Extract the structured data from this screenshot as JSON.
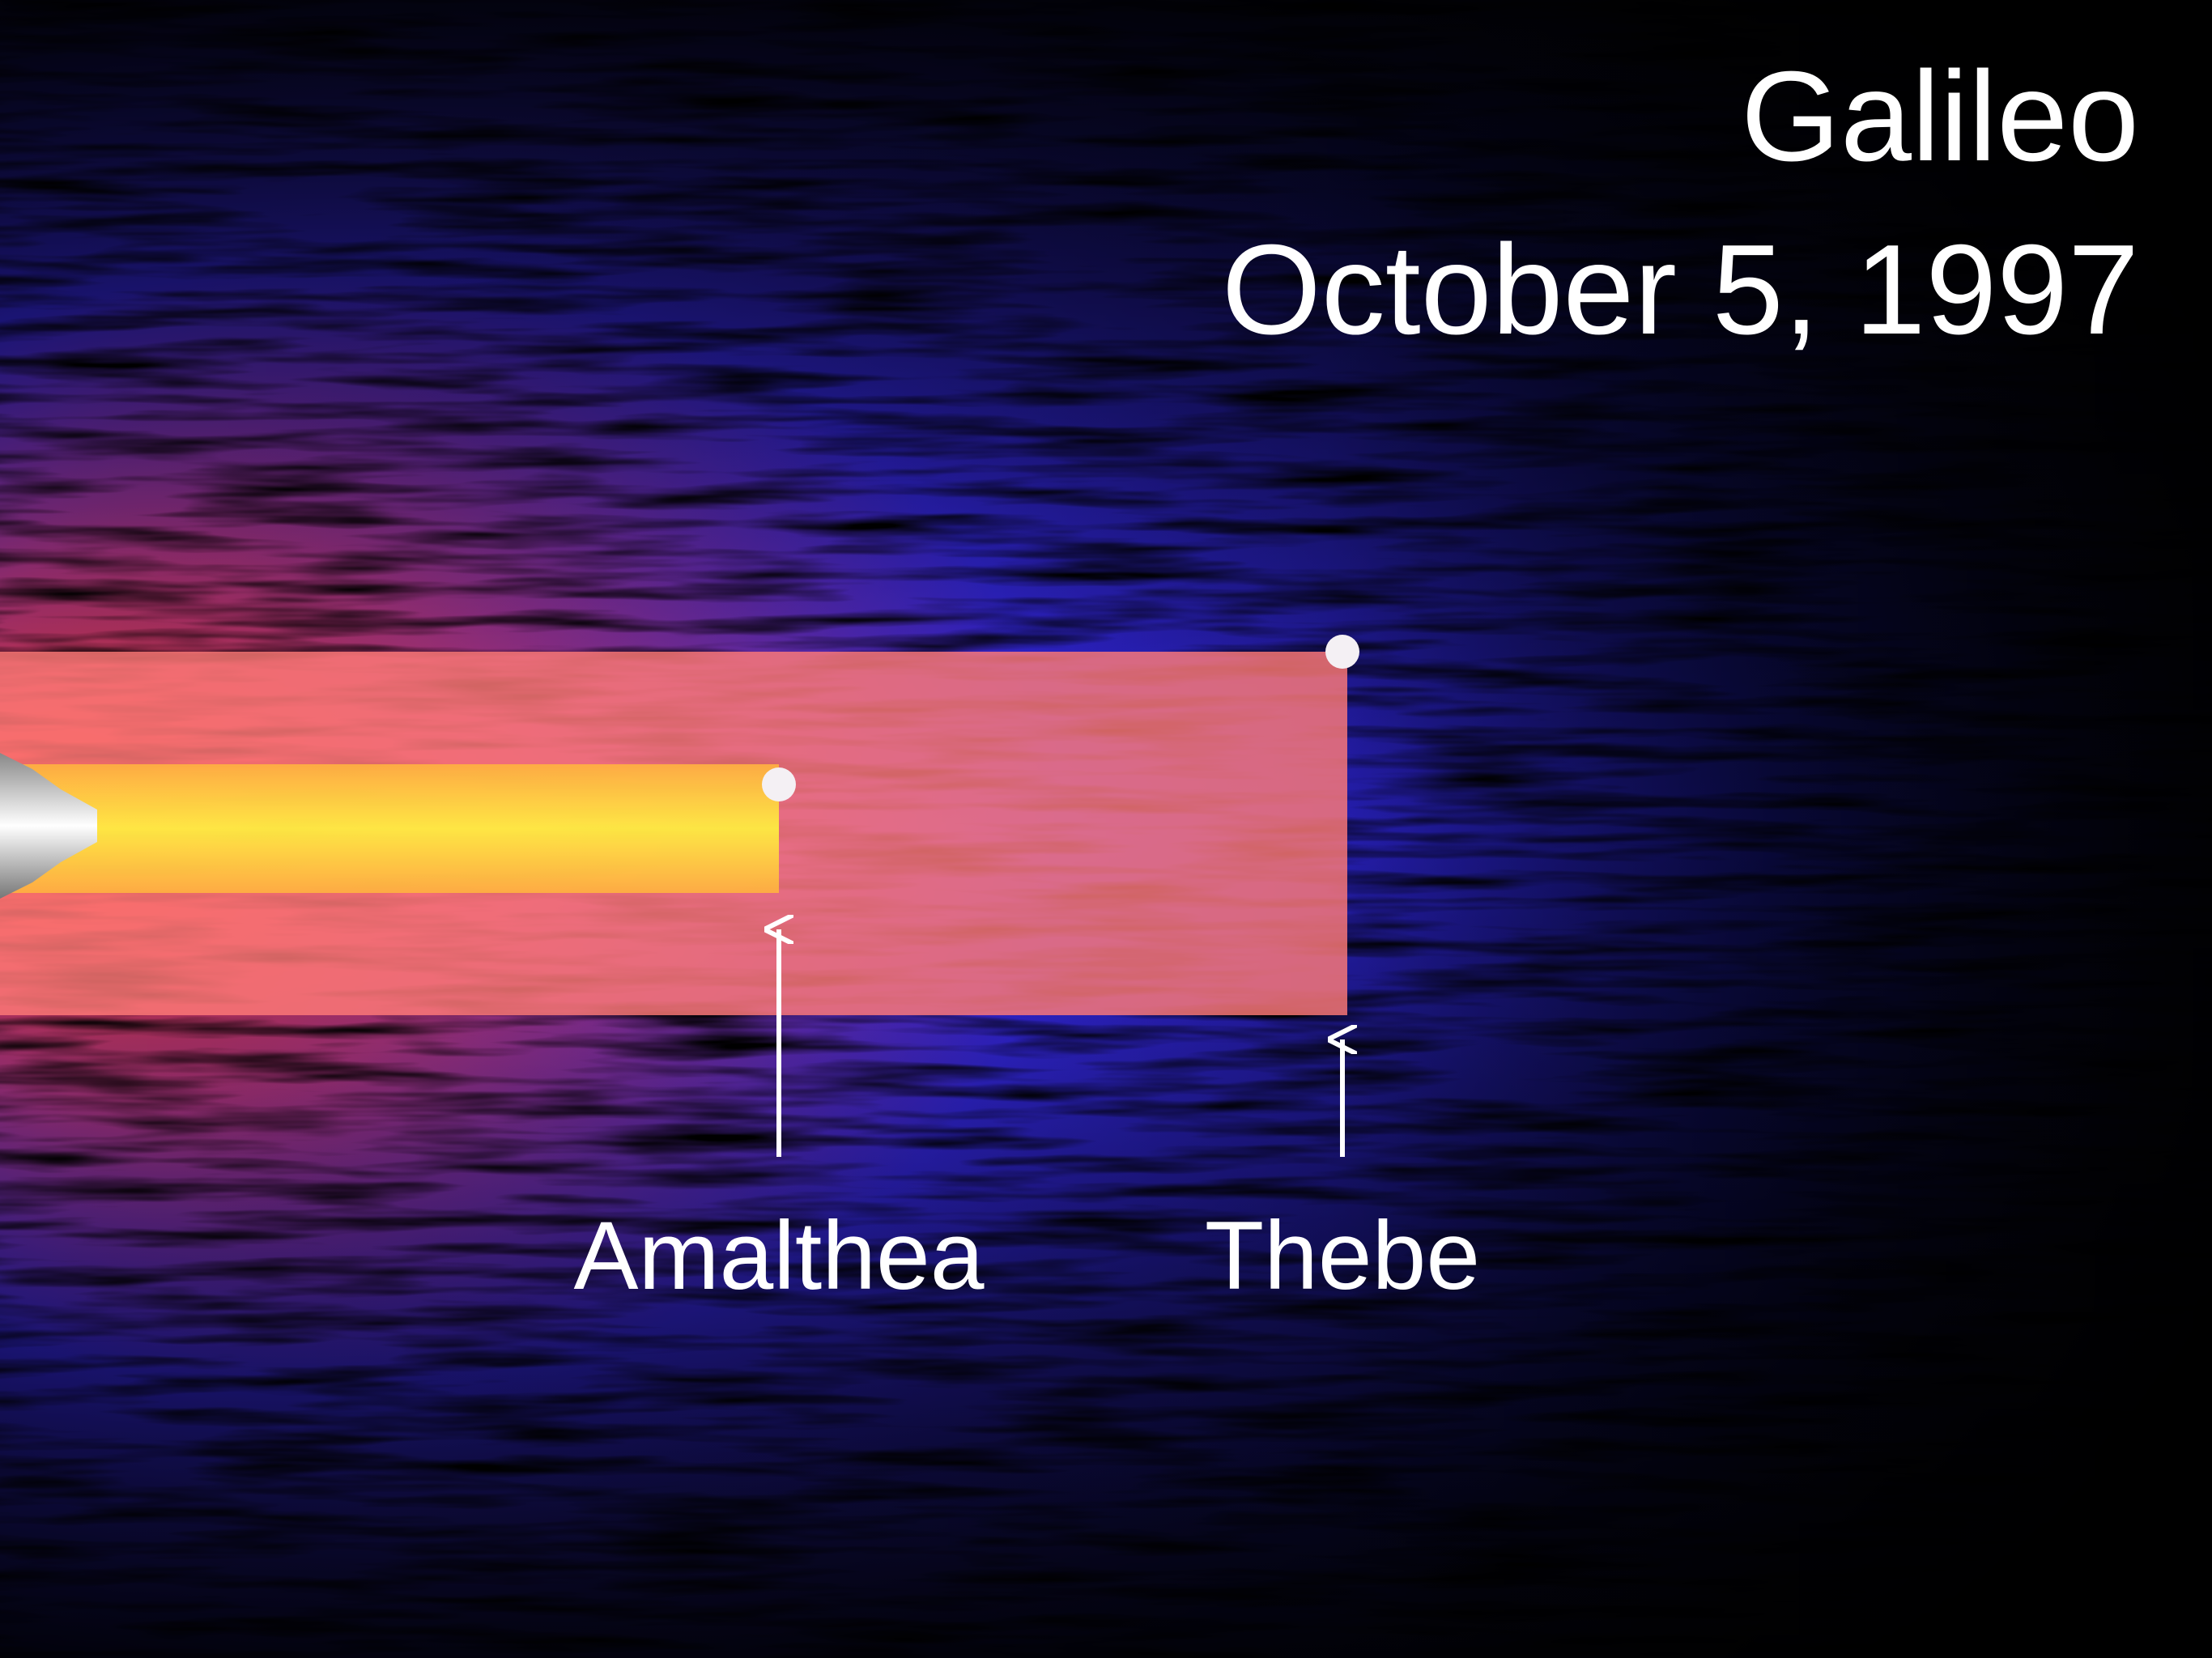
{
  "header": {
    "title": "Galileo",
    "date": "October 5, 1997"
  },
  "labels": {
    "amalthea": "Amalthea",
    "thebe": "Thebe"
  }
}
